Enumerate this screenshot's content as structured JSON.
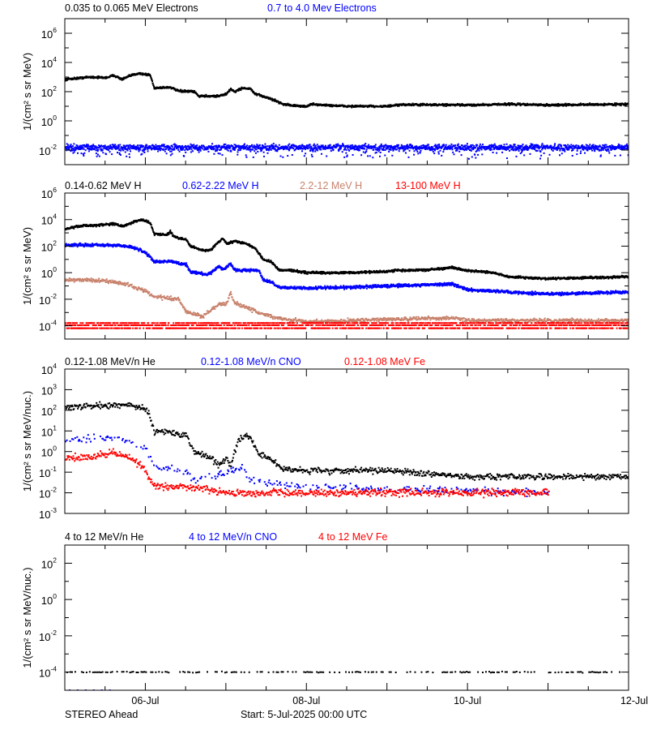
{
  "footer": {
    "spacecraft": "STEREO Ahead",
    "start": "Start:  5-Jul-2025 00:00 UTC"
  },
  "colors": {
    "black": "#000000",
    "blue": "#0000ff",
    "brown": "#c8826c",
    "red": "#ff0000"
  },
  "chart_data": [
    {
      "type": "scatter",
      "title": "",
      "ylabel": "1/(cm² s sr MeV)",
      "yscale": "log",
      "ylim": [
        0.001,
        10000000
      ],
      "ytick_exponents": [
        6,
        4,
        2,
        0,
        -2
      ],
      "xlim": [
        "2025-07-05 00:00",
        "2025-07-12 00:00"
      ],
      "x_unit": "day of July 2025 (UTC)",
      "series": [
        {
          "name": "0.035 to 0.065 MeV Electrons",
          "color": "#000000",
          "points": [
            [
              5.0,
              700
            ],
            [
              5.3,
              1000
            ],
            [
              5.5,
              900
            ],
            [
              5.6,
              1300
            ],
            [
              5.7,
              700
            ],
            [
              5.8,
              1200
            ],
            [
              5.9,
              1800
            ],
            [
              6.0,
              1500
            ],
            [
              6.05,
              1400
            ],
            [
              6.1,
              180
            ],
            [
              6.3,
              200
            ],
            [
              6.4,
              110
            ],
            [
              6.6,
              100
            ],
            [
              6.65,
              50
            ],
            [
              6.9,
              50
            ],
            [
              7.0,
              70
            ],
            [
              7.05,
              150
            ],
            [
              7.1,
              100
            ],
            [
              7.2,
              180
            ],
            [
              7.3,
              150
            ],
            [
              7.35,
              70
            ],
            [
              7.5,
              40
            ],
            [
              7.6,
              25
            ],
            [
              7.7,
              14
            ],
            [
              7.9,
              10
            ],
            [
              8.0,
              10
            ],
            [
              8.05,
              14
            ],
            [
              8.2,
              12
            ],
            [
              8.5,
              10
            ],
            [
              9.0,
              10
            ],
            [
              9.2,
              13
            ],
            [
              10.0,
              12
            ],
            [
              10.5,
              14
            ],
            [
              11.0,
              12
            ],
            [
              12.0,
              14
            ]
          ]
        },
        {
          "name": "0.7 to 4.0 Mev Electrons",
          "color": "#0000ff",
          "points": [
            [
              5.0,
              0.015
            ],
            [
              12.0,
              0.015
            ]
          ]
        }
      ]
    },
    {
      "type": "scatter",
      "title": "",
      "ylabel": "1/(cm² s sr MeV)",
      "yscale": "log",
      "ylim": [
        1e-05,
        1000000
      ],
      "ytick_exponents": [
        6,
        4,
        2,
        0,
        -2,
        -4
      ],
      "xlim": [
        "2025-07-05 00:00",
        "2025-07-12 00:00"
      ],
      "x_unit": "day of July 2025 (UTC)",
      "series": [
        {
          "name": "0.14-0.62 MeV H",
          "color": "#000000",
          "points": [
            [
              5.0,
              2000
            ],
            [
              5.2,
              3500
            ],
            [
              5.5,
              4000
            ],
            [
              5.6,
              5000
            ],
            [
              5.7,
              3000
            ],
            [
              5.8,
              5000
            ],
            [
              5.9,
              9000
            ],
            [
              6.0,
              8000
            ],
            [
              6.05,
              6000
            ],
            [
              6.1,
              800
            ],
            [
              6.25,
              700
            ],
            [
              6.3,
              1200
            ],
            [
              6.35,
              500
            ],
            [
              6.5,
              300
            ],
            [
              6.55,
              100
            ],
            [
              6.7,
              50
            ],
            [
              6.8,
              50
            ],
            [
              6.85,
              100
            ],
            [
              6.9,
              200
            ],
            [
              6.95,
              400
            ],
            [
              7.0,
              150
            ],
            [
              7.1,
              250
            ],
            [
              7.15,
              200
            ],
            [
              7.25,
              150
            ],
            [
              7.35,
              70
            ],
            [
              7.4,
              30
            ],
            [
              7.45,
              10
            ],
            [
              7.55,
              7
            ],
            [
              7.65,
              1.5
            ],
            [
              7.8,
              1.5
            ],
            [
              8.0,
              1.0
            ],
            [
              8.5,
              1.0
            ],
            [
              9.0,
              1.2
            ],
            [
              9.1,
              1.5
            ],
            [
              9.5,
              1.6
            ],
            [
              9.8,
              2.5
            ],
            [
              9.95,
              1.5
            ],
            [
              10.3,
              1.0
            ],
            [
              10.5,
              0.5
            ],
            [
              11.0,
              0.35
            ],
            [
              12.0,
              0.5
            ]
          ]
        },
        {
          "name": "0.62-2.22 MeV H",
          "color": "#0000ff",
          "points": [
            [
              5.0,
              120
            ],
            [
              5.6,
              120
            ],
            [
              5.8,
              90
            ],
            [
              5.9,
              60
            ],
            [
              6.0,
              30
            ],
            [
              6.1,
              7
            ],
            [
              6.3,
              7
            ],
            [
              6.5,
              4
            ],
            [
              6.55,
              1.2
            ],
            [
              6.75,
              0.7
            ],
            [
              6.85,
              1.5
            ],
            [
              6.9,
              3
            ],
            [
              6.95,
              1.5
            ],
            [
              7.05,
              5
            ],
            [
              7.1,
              1.5
            ],
            [
              7.2,
              1.5
            ],
            [
              7.4,
              1.5
            ],
            [
              7.45,
              0.3
            ],
            [
              7.55,
              0.2
            ],
            [
              7.65,
              0.08
            ],
            [
              8.0,
              0.07
            ],
            [
              8.5,
              0.08
            ],
            [
              9.0,
              0.1
            ],
            [
              9.8,
              0.14
            ],
            [
              10.0,
              0.05
            ],
            [
              10.5,
              0.035
            ],
            [
              11.0,
              0.025
            ],
            [
              12.0,
              0.035
            ]
          ]
        },
        {
          "name": "2.2-12 MeV H",
          "color": "#c8826c",
          "points": [
            [
              5.0,
              0.3
            ],
            [
              5.5,
              0.25
            ],
            [
              5.8,
              0.12
            ],
            [
              5.9,
              0.06
            ],
            [
              6.0,
              0.04
            ],
            [
              6.1,
              0.015
            ],
            [
              6.4,
              0.01
            ],
            [
              6.5,
              0.001
            ],
            [
              6.7,
              0.0005
            ],
            [
              6.9,
              0.004
            ],
            [
              7.0,
              0.005
            ],
            [
              7.05,
              0.03
            ],
            [
              7.1,
              0.005
            ],
            [
              7.4,
              0.001
            ],
            [
              7.6,
              0.0004
            ],
            [
              8.0,
              0.0002
            ],
            [
              9.0,
              0.0003
            ],
            [
              9.8,
              0.0004
            ],
            [
              10.0,
              0.00025
            ],
            [
              12.0,
              0.00025
            ]
          ]
        },
        {
          "name": "13-100 MeV H",
          "color": "#ff0000",
          "points": [
            [
              5.0,
              0.0001
            ],
            [
              12.0,
              0.0001
            ]
          ]
        }
      ]
    },
    {
      "type": "scatter",
      "title": "",
      "ylabel": "1/(cm² s sr MeV/nuc.)",
      "yscale": "log",
      "ylim": [
        0.001,
        10000
      ],
      "ytick_exponents": [
        4,
        3,
        2,
        1,
        0,
        -1,
        -2,
        -3
      ],
      "xlim": [
        "2025-07-05 00:00",
        "2025-07-12 00:00"
      ],
      "x_unit": "day of July 2025 (UTC)",
      "series": [
        {
          "name": "0.12-1.08 MeV/n He",
          "color": "#000000",
          "points": [
            [
              5.0,
              150
            ],
            [
              5.8,
              180
            ],
            [
              6.0,
              120
            ],
            [
              6.05,
              50
            ],
            [
              6.1,
              10
            ],
            [
              6.3,
              8
            ],
            [
              6.5,
              6
            ],
            [
              6.6,
              1.0
            ],
            [
              6.8,
              0.5
            ],
            [
              6.9,
              0.2
            ],
            [
              7.0,
              0.5
            ],
            [
              7.05,
              0.2
            ],
            [
              7.15,
              4
            ],
            [
              7.25,
              6
            ],
            [
              7.3,
              4
            ],
            [
              7.4,
              0.8
            ],
            [
              7.55,
              0.4
            ],
            [
              7.7,
              0.15
            ],
            [
              8.0,
              0.12
            ],
            [
              9.0,
              0.12
            ],
            [
              10.0,
              0.06
            ],
            [
              12.0,
              0.06
            ]
          ]
        },
        {
          "name": "0.12-1.08 MeV/n CNO",
          "color": "#0000ff",
          "points": [
            [
              5.0,
              3.5
            ],
            [
              5.6,
              5
            ],
            [
              6.0,
              1.5
            ],
            [
              6.1,
              0.2
            ],
            [
              6.5,
              0.1
            ],
            [
              6.6,
              0.04
            ],
            [
              7.0,
              0.1
            ],
            [
              7.2,
              0.15
            ],
            [
              7.3,
              0.04
            ],
            [
              8.0,
              0.02
            ],
            [
              11.0,
              0.01
            ]
          ]
        },
        {
          "name": "0.12-1.08 MeV Fe",
          "color": "#ff0000",
          "points": [
            [
              5.0,
              0.5
            ],
            [
              5.3,
              0.5
            ],
            [
              5.6,
              1.0
            ],
            [
              5.9,
              0.3
            ],
            [
              6.0,
              0.1
            ],
            [
              6.1,
              0.02
            ],
            [
              6.5,
              0.02
            ],
            [
              7.0,
              0.01
            ],
            [
              11.0,
              0.01
            ]
          ]
        }
      ]
    },
    {
      "type": "scatter",
      "title": "",
      "ylabel": "1/(cm² s sr MeV/nuc.)",
      "yscale": "log",
      "ylim": [
        1e-05,
        1000
      ],
      "ytick_exponents": [
        2,
        0,
        -2,
        -4
      ],
      "xlim": [
        "2025-07-05 00:00",
        "2025-07-12 00:00"
      ],
      "x_unit": "day of July 2025 (UTC)",
      "series": [
        {
          "name": "4 to 12 MeV/n He",
          "color": "#000000",
          "points": [
            [
              5.0,
              0.0001
            ],
            [
              11.9,
              0.0001
            ]
          ]
        },
        {
          "name": "4 to 12 MeV/n CNO",
          "color": "#0000ff",
          "points": [
            [
              5.05,
              1e-05
            ],
            [
              5.55,
              1e-05
            ]
          ]
        },
        {
          "name": "4 to 12 MeV Fe",
          "color": "#ff0000",
          "points": []
        }
      ]
    }
  ],
  "x_ticks": [
    "06-Jul",
    "08-Jul",
    "10-Jul",
    "12-Jul"
  ]
}
